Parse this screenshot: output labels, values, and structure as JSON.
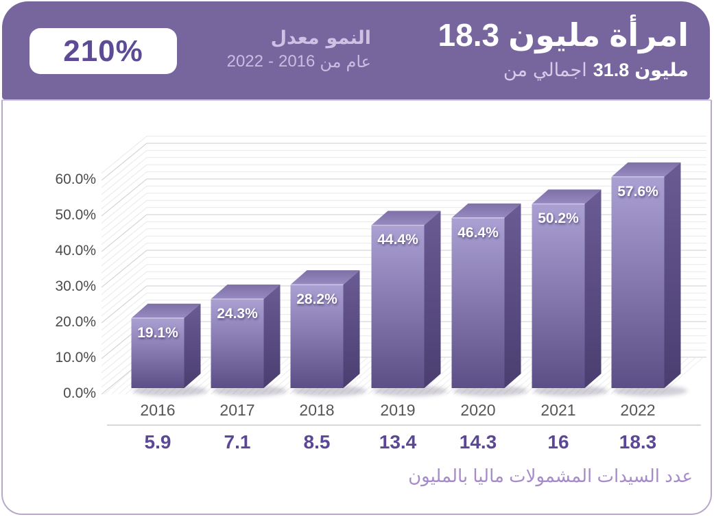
{
  "header": {
    "bg_color": "#77659e",
    "growth_badge": "210%",
    "growth_label_words": [
      "معدل",
      "النمو"
    ],
    "growth_period_words": [
      "2022",
      "-",
      "2016",
      "من",
      "عام"
    ],
    "title_words": [
      "18.3",
      "مليون",
      "امرأة"
    ],
    "subtitle_light_words": [
      "من",
      "اجمالي"
    ],
    "subtitle_bold_words": [
      "31.8",
      "مليون"
    ]
  },
  "chart_data": {
    "type": "bar",
    "style": "3d-column",
    "categories": [
      "2016",
      "2017",
      "2018",
      "2019",
      "2020",
      "2021",
      "2022"
    ],
    "series": [
      {
        "name": "share_of_women_financially_included_percent",
        "values": [
          19.1,
          24.3,
          28.2,
          44.4,
          46.4,
          50.2,
          57.6
        ]
      },
      {
        "name": "women_included_millions",
        "values": [
          5.9,
          7.1,
          8.5,
          13.4,
          14.3,
          16,
          18.3
        ]
      }
    ],
    "bar_labels": [
      "19.1%",
      "24.3%",
      "28.2%",
      "44.4%",
      "46.4%",
      "50.2%",
      "57.6%"
    ],
    "count_labels": [
      "5.9",
      "7.1",
      "8.5",
      "13.4",
      "14.3",
      "16",
      "18.3"
    ],
    "y_ticks": [
      "60.0%",
      "50.0%",
      "40.0%",
      "30.0%",
      "20.0%",
      "10.0%",
      "0.0%"
    ],
    "ylim": [
      0,
      62
    ],
    "grid": true,
    "legend": "none",
    "bar_color": "#8478ae",
    "caption": "عدد السيدات المشمولات ماليا بالمليون"
  }
}
